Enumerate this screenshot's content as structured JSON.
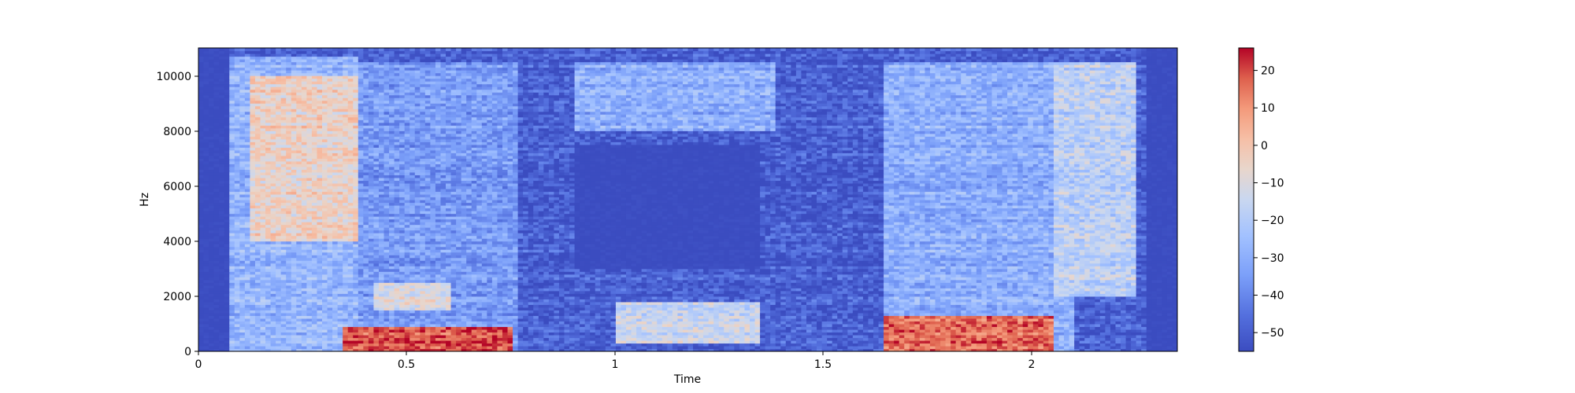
{
  "chart_data": {
    "type": "heatmap",
    "title": "",
    "xlabel": "Time",
    "ylabel": "Hz",
    "xlim": [
      0,
      2.35
    ],
    "ylim": [
      0,
      11025
    ],
    "x_ticks": [
      0,
      0.5,
      1,
      1.5,
      2
    ],
    "x_tick_labels": [
      "0",
      "0.5",
      "1",
      "1.5",
      "2"
    ],
    "y_ticks": [
      0,
      2000,
      4000,
      6000,
      8000,
      10000
    ],
    "y_tick_labels": [
      "0",
      "2000",
      "4000",
      "6000",
      "8000",
      "10000"
    ],
    "colorbar": {
      "ticks": [
        -50,
        -40,
        -30,
        -20,
        -10,
        0,
        10,
        20
      ],
      "tick_labels": [
        "−50",
        "−40",
        "−30",
        "−20",
        "−10",
        "0",
        "10",
        "20"
      ],
      "range": [
        -55,
        26
      ],
      "colormap": "coolwarm",
      "low_color": "#3b4cc0",
      "mid_color": "#dddddd",
      "high_color": "#b40426"
    },
    "regions": [
      {
        "t": [
          0.0,
          0.07
        ],
        "f": [
          0,
          11025
        ],
        "db": -55
      },
      {
        "t": [
          0.07,
          0.38
        ],
        "f": [
          0,
          10700
        ],
        "db": -28
      },
      {
        "t": [
          0.12,
          0.38
        ],
        "f": [
          4000,
          10000
        ],
        "db": -5
      },
      {
        "t": [
          0.38,
          0.77
        ],
        "f": [
          0,
          10500
        ],
        "db": -35
      },
      {
        "t": [
          0.42,
          0.6
        ],
        "f": [
          1500,
          2500
        ],
        "db": -10
      },
      {
        "t": [
          0.35,
          0.75
        ],
        "f": [
          0,
          900
        ],
        "db": 18
      },
      {
        "t": [
          0.9,
          1.35
        ],
        "f": [
          3000,
          7500
        ],
        "db": -55
      },
      {
        "t": [
          0.9,
          1.4
        ],
        "f": [
          8000,
          10500
        ],
        "db": -30
      },
      {
        "t": [
          1.0,
          1.35
        ],
        "f": [
          300,
          1800
        ],
        "db": -15
      },
      {
        "t": [
          1.38,
          1.65
        ],
        "f": [
          0,
          11025
        ],
        "db": -50
      },
      {
        "t": [
          1.65,
          2.1
        ],
        "f": [
          0,
          10500
        ],
        "db": -30
      },
      {
        "t": [
          1.65,
          2.05
        ],
        "f": [
          0,
          1300
        ],
        "db": 15
      },
      {
        "t": [
          2.05,
          2.25
        ],
        "f": [
          2000,
          10500
        ],
        "db": -18
      },
      {
        "t": [
          2.27,
          2.35
        ],
        "f": [
          0,
          11025
        ],
        "db": -55
      }
    ]
  }
}
